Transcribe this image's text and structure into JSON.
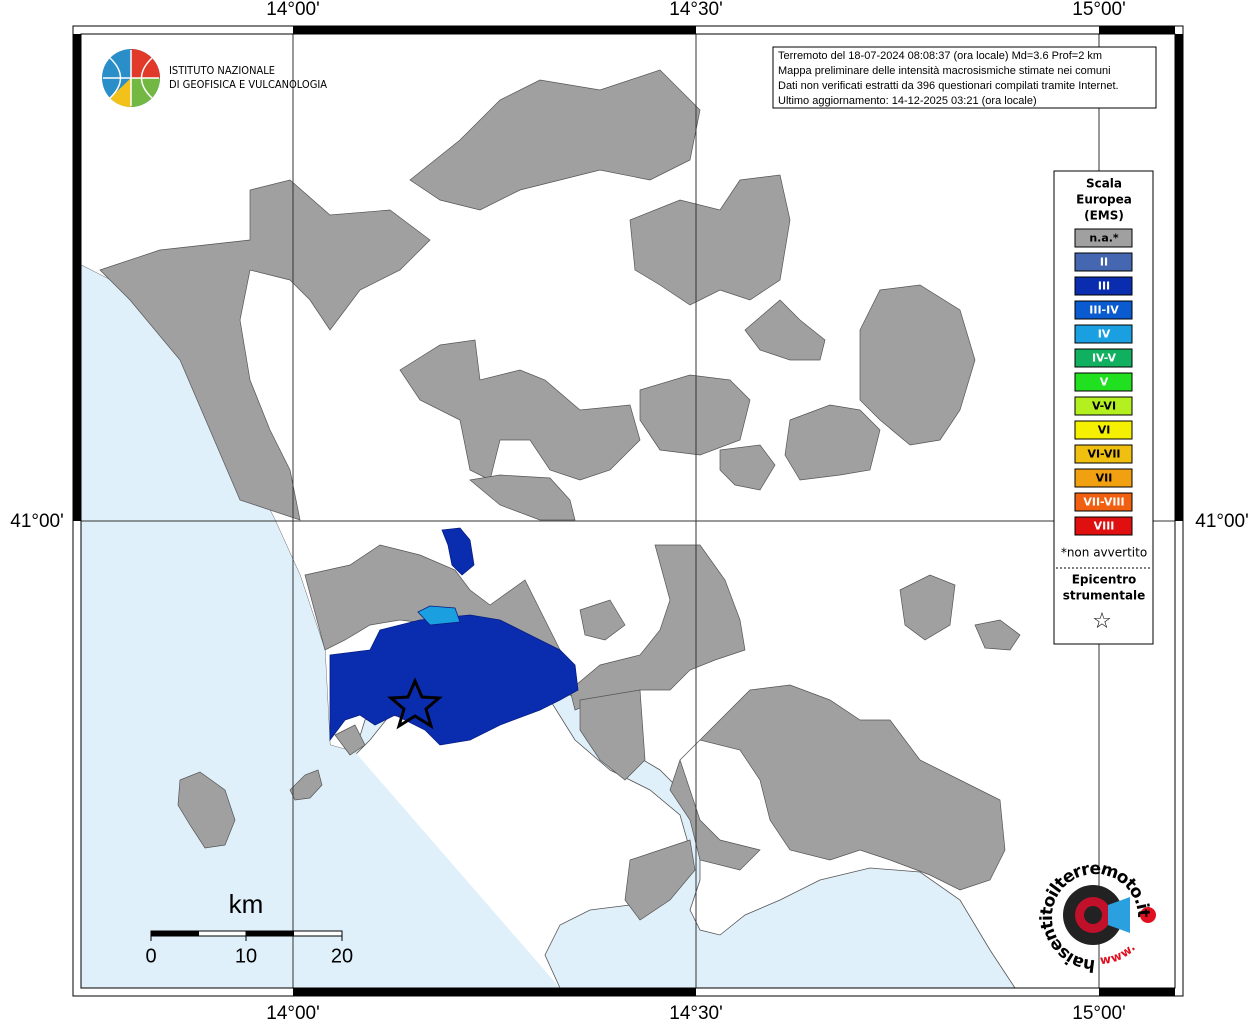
{
  "axis_labels": {
    "top": [
      "14°00'",
      "14°30'",
      "15°00'"
    ],
    "bottom": [
      "14°00'",
      "14°30'",
      "15°00'"
    ],
    "left": [
      "41°00'"
    ],
    "right": [
      "41°00'"
    ]
  },
  "logo": {
    "line1": "ISTITUTO NAZIONALE",
    "line2": "DI GEOFISICA E VULCANOLOGIA"
  },
  "info_box": [
    "Terremoto del 18-07-2024 08:08:37 (ora locale) Md=3.6 Prof=2 km",
    "Mappa preliminare delle intensità macrosismiche stimate nei comuni",
    "Dati non verificati estratti da 396 questionari compilati tramite Internet.",
    "Ultimo aggiornamento: 14-12-2025 03:21 (ora locale)"
  ],
  "legend": {
    "title": [
      "Scala",
      "Europea",
      "(EMS)"
    ],
    "items": [
      {
        "label": "n.a.*",
        "color": "#a0a0a0"
      },
      {
        "label": "II",
        "color": "#4566b0"
      },
      {
        "label": "III",
        "color": "#0a2db0"
      },
      {
        "label": "III-IV",
        "color": "#0a5ad0"
      },
      {
        "label": "IV",
        "color": "#1a9fe0"
      },
      {
        "label": "IV-V",
        "color": "#10b060"
      },
      {
        "label": "V",
        "color": "#20e020"
      },
      {
        "label": "V-VI",
        "color": "#b4f020"
      },
      {
        "label": "VI",
        "color": "#f4f000"
      },
      {
        "label": "VI-VII",
        "color": "#f0c010"
      },
      {
        "label": "VII",
        "color": "#f0a010"
      },
      {
        "label": "VII-VIII",
        "color": "#f06010"
      },
      {
        "label": "VIII",
        "color": "#e01010"
      }
    ],
    "note": "*non avvertito",
    "epicenter": [
      "Epicentro",
      "strumentale"
    ],
    "epicenter_symbol": "☆"
  },
  "scale_bar": {
    "unit": "km",
    "labels": [
      "0",
      "10",
      "20"
    ]
  },
  "site_logo": {
    "text": "haisentitoilterremoto.it",
    "prefix": "www."
  }
}
